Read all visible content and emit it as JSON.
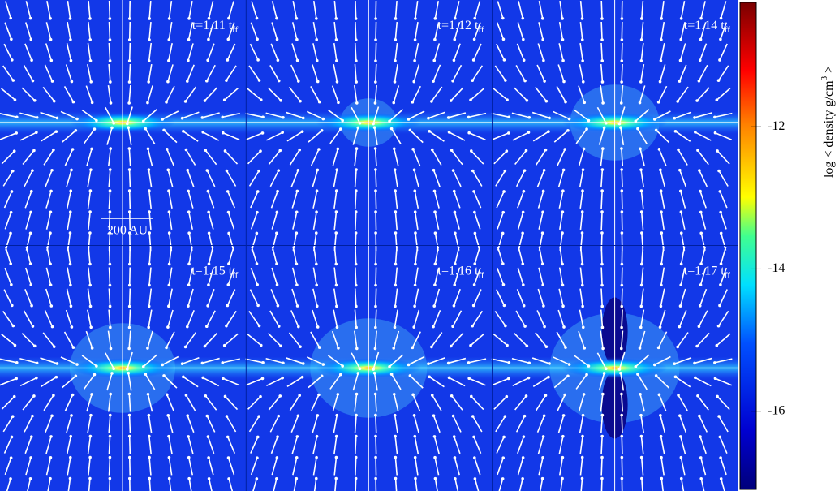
{
  "chart_data": {
    "type": "image-grid",
    "panels": [
      {
        "label": "t=1.11 t",
        "sub": "ff"
      },
      {
        "label": "t=1.12 t",
        "sub": "ff"
      },
      {
        "label": "t=1.14 t",
        "sub": "ff"
      },
      {
        "label": "t=1.15 t",
        "sub": "ff"
      },
      {
        "label": "t=1.16 t",
        "sub": "ff"
      },
      {
        "label": "t=1.17 t",
        "sub": "ff"
      }
    ],
    "scale_bar": "200 AU",
    "colorbar": {
      "label": "log < density g/cm",
      "label_sup": "3",
      "label_end": " >",
      "lim": [
        -17.1,
        -10.25
      ],
      "ticks": [
        -12,
        -14,
        -16
      ]
    }
  }
}
